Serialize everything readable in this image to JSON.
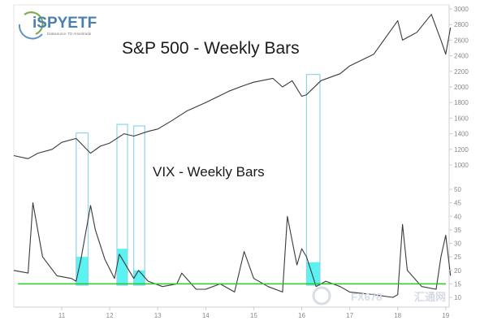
{
  "logo": {
    "name": "iSPYETF",
    "sub": "Datasource: TD Ameritrade"
  },
  "watermark": {
    "text": "FX678",
    "cn": "汇通网"
  },
  "colors": {
    "price": "#3a3a3a",
    "highlight_fill": "#3ff0f0",
    "highlight_border": "#8fd4ec",
    "support_line": "#22cc22",
    "tick_text": "#8a8a8a"
  },
  "chart_data": [
    {
      "type": "line",
      "title": "S&P 500 - Weekly Bars",
      "y_axis_side": "right",
      "yticks": [
        1000,
        1200,
        1400,
        1600,
        1800,
        2000,
        2200,
        2400,
        2600,
        2800,
        3000
      ],
      "ylim": [
        1000,
        3000
      ],
      "x": [
        2010.0,
        2010.3,
        2010.5,
        2010.8,
        2011.0,
        2011.3,
        2011.6,
        2011.8,
        2012.0,
        2012.3,
        2012.5,
        2012.8,
        2013.0,
        2013.3,
        2013.6,
        2014.0,
        2014.5,
        2014.8,
        2015.0,
        2015.4,
        2015.6,
        2015.8,
        2016.0,
        2016.1,
        2016.4,
        2016.8,
        2017.0,
        2017.5,
        2018.0,
        2018.1,
        2018.4,
        2018.7,
        2018.9,
        2019.0,
        2019.1
      ],
      "values": [
        1120,
        1080,
        1150,
        1200,
        1290,
        1340,
        1150,
        1240,
        1280,
        1400,
        1370,
        1430,
        1460,
        1570,
        1690,
        1800,
        1950,
        2020,
        2060,
        2110,
        2000,
        2080,
        1880,
        1900,
        2080,
        2170,
        2270,
        2420,
        2850,
        2600,
        2700,
        2930,
        2600,
        2420,
        2760
      ]
    },
    {
      "type": "line",
      "title": "VIX - Weekly Bars",
      "y_axis_side": "right",
      "yticks": [
        10,
        15,
        20,
        25,
        30,
        35,
        40,
        45,
        50
      ],
      "ylim": [
        10,
        50
      ],
      "x": [
        2010.0,
        2010.3,
        2010.4,
        2010.6,
        2010.9,
        2011.2,
        2011.3,
        2011.4,
        2011.6,
        2011.7,
        2011.9,
        2012.1,
        2012.2,
        2012.3,
        2012.5,
        2012.6,
        2012.8,
        2013.1,
        2013.4,
        2013.5,
        2013.8,
        2014.0,
        2014.3,
        2014.6,
        2014.8,
        2015.0,
        2015.3,
        2015.6,
        2015.7,
        2015.9,
        2016.0,
        2016.1,
        2016.3,
        2016.5,
        2016.8,
        2017.0,
        2017.5,
        2017.9,
        2018.0,
        2018.1,
        2018.2,
        2018.5,
        2018.8,
        2018.9,
        2019.0,
        2019.1
      ],
      "values": [
        20,
        19,
        45,
        25,
        18,
        17,
        16,
        24,
        44,
        35,
        24,
        17,
        26,
        23,
        17,
        20,
        16,
        14,
        15,
        19,
        13,
        13,
        15,
        12,
        27,
        17,
        14,
        12,
        40,
        22,
        28,
        25,
        14,
        16,
        14,
        12,
        11,
        10,
        11,
        37,
        20,
        14,
        13,
        25,
        33,
        18
      ],
      "support_level": 15
    }
  ],
  "highlights": [
    {
      "start": 2011.3,
      "end": 2011.55,
      "sp_top": 1410,
      "vix_fill_top": 25
    },
    {
      "start": 2012.15,
      "end": 2012.37,
      "sp_top": 1520,
      "vix_fill_top": 28
    },
    {
      "start": 2012.5,
      "end": 2012.73,
      "sp_top": 1500,
      "vix_fill_top": 20
    },
    {
      "start": 2016.1,
      "end": 2016.38,
      "sp_top": 2160,
      "vix_fill_top": 23
    }
  ],
  "x_axis": {
    "ticks": [
      "11",
      "12",
      "13",
      "14",
      "15",
      "16",
      "17",
      "18",
      "19"
    ],
    "tick_years": [
      2011,
      2012,
      2013,
      2014,
      2015,
      2016,
      2017,
      2018,
      2019
    ]
  }
}
